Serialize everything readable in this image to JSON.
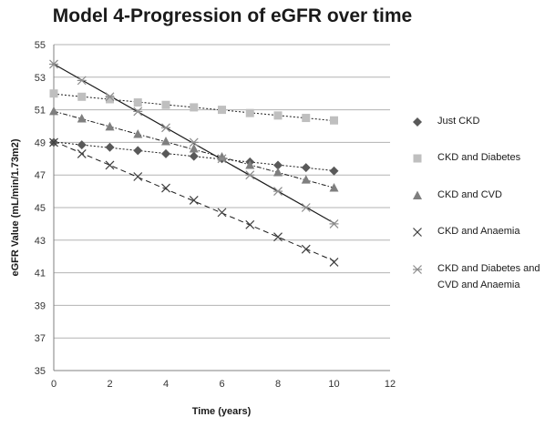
{
  "chart_data": {
    "type": "scatter",
    "title": "Model 4-Progression of eGFR over time",
    "xlabel": "Time (years)",
    "ylabel": "eGFR Value (mL/min/1.73m2)",
    "xlim": [
      0,
      12
    ],
    "ylim": [
      35,
      55
    ],
    "xticks": [
      0,
      2,
      4,
      6,
      8,
      10,
      12
    ],
    "yticks": [
      35,
      37,
      39,
      41,
      43,
      45,
      47,
      49,
      51,
      53,
      55
    ],
    "grid": "horizontal",
    "legend_position": "right",
    "x": [
      0,
      1,
      2,
      3,
      4,
      5,
      6,
      7,
      8,
      9,
      10
    ],
    "series": [
      {
        "name": "Just CKD",
        "marker": "diamond",
        "color": "#595959",
        "values": [
          49.0,
          48.85,
          48.7,
          48.5,
          48.3,
          48.15,
          48.0,
          47.8,
          47.6,
          47.45,
          47.25
        ],
        "trendline": "dotted"
      },
      {
        "name": "CKD and Diabetes",
        "marker": "square",
        "color": "#bfbfbf",
        "values": [
          52.0,
          51.8,
          51.65,
          51.45,
          51.3,
          51.15,
          51.0,
          50.8,
          50.65,
          50.5,
          50.35
        ],
        "trendline": "dotted"
      },
      {
        "name": "CKD and CVD",
        "marker": "triangle",
        "color": "#7f7f7f",
        "values": [
          50.9,
          50.45,
          49.95,
          49.5,
          49.05,
          48.6,
          48.1,
          47.6,
          47.15,
          46.7,
          46.2
        ],
        "trendline": "dash-dot"
      },
      {
        "name": "CKD and Anaemia",
        "marker": "x",
        "color": "#404040",
        "values": [
          49.0,
          48.3,
          47.6,
          46.9,
          46.2,
          45.45,
          44.7,
          43.95,
          43.2,
          42.45,
          41.65
        ],
        "trendline": "dashed"
      },
      {
        "name": "CKD and Diabetes and CVD and Anaemia",
        "legend_lines": [
          "CKD and Diabetes and",
          "CVD and Anaemia"
        ],
        "marker": "star",
        "color": "#8c8c8c",
        "values": [
          53.8,
          52.8,
          51.8,
          50.9,
          49.9,
          49.0,
          48.0,
          47.0,
          46.0,
          45.0,
          44.0
        ],
        "trendline": "solid"
      }
    ]
  }
}
